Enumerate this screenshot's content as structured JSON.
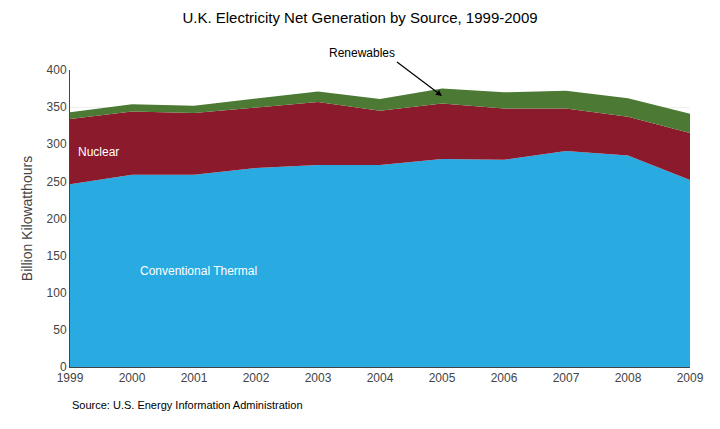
{
  "chart_data": {
    "type": "area",
    "title": "U.K. Electricity Net Generation by Source, 1999-2009",
    "ylabel": "Billion Kilowatthours",
    "source": "Source: U.S. Energy Information Administration",
    "x": [
      1999,
      2000,
      2001,
      2002,
      2003,
      2004,
      2005,
      2006,
      2007,
      2008,
      2009
    ],
    "series": [
      {
        "name": "Conventional Thermal",
        "color": "#29ABE2",
        "values": [
          246,
          259,
          259,
          268,
          272,
          272,
          280,
          279,
          291,
          285,
          252
        ]
      },
      {
        "name": "Nuclear",
        "color": "#8B1A2C",
        "values": [
          88,
          85,
          83,
          81,
          85,
          73,
          75,
          69,
          57,
          52,
          63
        ]
      },
      {
        "name": "Renewables",
        "color": "#4C7A34",
        "values": [
          9,
          10,
          10,
          12,
          14,
          16,
          20,
          22,
          24,
          25,
          26
        ]
      }
    ],
    "stacked": true,
    "xlim": [
      1999,
      2009
    ],
    "xticks": [
      1999,
      2000,
      2001,
      2002,
      2003,
      2004,
      2005,
      2006,
      2007,
      2008,
      2009
    ],
    "ylim": [
      0,
      400
    ],
    "yticks": [
      0,
      50,
      100,
      150,
      200,
      250,
      300,
      350,
      400
    ],
    "grid": true
  }
}
